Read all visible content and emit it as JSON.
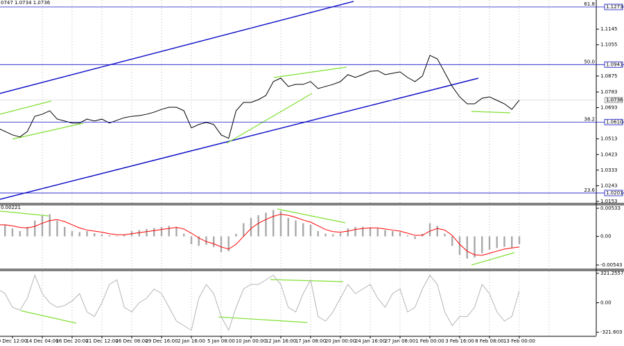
{
  "chart_data": [
    {
      "type": "line",
      "header": "0747 1.0734 1.0736",
      "color": "#000000",
      "categories": [
        null,
        null,
        "9 Dec 12:00",
        null,
        null,
        null,
        "14 Dec 04:00",
        null,
        null,
        null,
        "16 Dec 20:00",
        null,
        null,
        null,
        "21 Dec 12:00",
        null,
        null,
        null,
        "26 Dec 08:00",
        null,
        null,
        null,
        "29 Dec 16:00",
        null,
        null,
        null,
        "2 Jan 16:00",
        null,
        null,
        null,
        "5 Jan 08:00",
        null,
        null,
        null,
        "10 Jan 00:00",
        null,
        null,
        null,
        "12 Jan 16:00",
        null,
        null,
        null,
        "17 Jan 08:00",
        null,
        null,
        null,
        "20 Jan 00:00",
        null,
        null,
        null,
        "24 Jan 16:00",
        null,
        null,
        null,
        "27 Jan 08:00",
        null,
        null,
        null,
        "1 Feb 00:00",
        null,
        null,
        null,
        "3 Feb 16:00",
        null,
        null,
        null,
        "8 Feb 08:00",
        null,
        null,
        null,
        "13 Feb 00:00"
      ],
      "values": [
        1.0576,
        1.0556,
        1.0536,
        1.0524,
        1.0556,
        1.0643,
        1.0655,
        1.0675,
        1.0627,
        1.0616,
        1.0604,
        1.0604,
        1.0627,
        1.0616,
        1.0627,
        1.0604,
        1.062,
        1.0635,
        1.0643,
        1.0647,
        1.0655,
        1.0667,
        1.0683,
        1.0695,
        1.0695,
        1.0675,
        1.0576,
        1.0596,
        1.0608,
        1.0596,
        1.0536,
        1.0516,
        1.0675,
        1.0723,
        1.0723,
        1.0739,
        1.0763,
        1.0843,
        1.0863,
        1.0815,
        1.0827,
        1.0827,
        1.0843,
        1.0803,
        1.0815,
        1.0827,
        1.0843,
        1.0883,
        1.0867,
        1.0883,
        1.0902,
        1.0906,
        1.0883,
        1.0891,
        1.0899,
        1.0867,
        1.0843,
        1.0875,
        1.0994,
        1.0974,
        1.0895,
        1.0815,
        1.0755,
        1.0715,
        1.0715,
        1.0747,
        1.0755,
        1.0735,
        1.0715,
        1.0683,
        1.0736
      ],
      "ylim": [
        1.0145,
        1.1313
      ],
      "yticks": [
        1.1145,
        1.1055,
        1.0875,
        1.0783,
        1.0693,
        1.0513,
        1.0423,
        1.0333,
        1.0243,
        1.0153
      ],
      "levels": [
        {
          "value": 1.1273,
          "label": "61.8"
        },
        {
          "value": 1.0941,
          "label": "50.0"
        },
        {
          "value": 1.061,
          "label": "38.2"
        },
        {
          "value": 1.0201,
          "label": "23.6"
        }
      ],
      "level_prices": [
        {
          "value": 1.1273,
          "label": "1.1273"
        },
        {
          "value": 1.0941,
          "label": "1.0941"
        },
        {
          "value": 1.061,
          "label": "1.0610"
        },
        {
          "value": 1.0201,
          "label": "1.0201"
        }
      ],
      "last_price": 1.0736
    },
    {
      "type": "bar",
      "header": "0.00221",
      "series": [
        {
          "type": "bar",
          "color": "#a8a8a8",
          "values": [
            0.0026,
            0.0022,
            0.0015,
            0.001,
            0.0018,
            0.003,
            0.004,
            0.0042,
            0.003,
            0.0018,
            0.001,
            0.0008,
            0.001,
            0.0006,
            0.0004,
            0.0002,
            0.0001,
            0.0004,
            0.001,
            0.0012,
            0.0014,
            0.0016,
            0.0018,
            0.002,
            0.0018,
            0.0005,
            -0.0015,
            -0.0018,
            -0.0016,
            -0.002,
            -0.003,
            -0.0028,
            0.0005,
            0.0025,
            0.0035,
            0.004,
            0.0045,
            0.005,
            0.0048,
            0.0035,
            0.003,
            0.0025,
            0.0022,
            0.001,
            0.0005,
            0.0004,
            0.0006,
            0.0015,
            0.0018,
            0.0018,
            0.0017,
            0.0015,
            0.0012,
            0.001,
            0.0008,
            0.0002,
            -0.0005,
            0.0005,
            0.0025,
            0.002,
            0.0005,
            -0.0018,
            -0.0035,
            -0.0042,
            -0.004,
            -0.0032,
            -0.0025,
            -0.0022,
            -0.002,
            -0.0022,
            -0.0015
          ]
        },
        {
          "type": "line",
          "color": "#ff0000",
          "values": [
            0.0022,
            0.0022,
            0.002,
            0.0017,
            0.0016,
            0.0019,
            0.0025,
            0.003,
            0.0032,
            0.0028,
            0.0022,
            0.0016,
            0.0012,
            0.001,
            0.0008,
            0.0005,
            0.0003,
            0.0003,
            0.0005,
            0.0007,
            0.0009,
            0.0011,
            0.0013,
            0.0015,
            0.0017,
            0.0014,
            0.0006,
            -0.0003,
            -0.001,
            -0.0014,
            -0.002,
            -0.0024,
            -0.0015,
            0,
            0.0015,
            0.0025,
            0.0032,
            0.0038,
            0.0042,
            0.004,
            0.0036,
            0.0031,
            0.0027,
            0.002,
            0.0013,
            0.0009,
            0.0008,
            0.001,
            0.0013,
            0.0015,
            0.0016,
            0.0016,
            0.0014,
            0.0012,
            0.001,
            0.0006,
            0.0002,
            0.0002,
            0.001,
            0.0015,
            0.0012,
            0.0002,
            -0.0015,
            -0.0028,
            -0.0035,
            -0.0036,
            -0.0032,
            -0.0028,
            -0.0024,
            -0.0022,
            -0.002
          ]
        }
      ],
      "ylim": [
        -0.00609,
        0.00585
      ],
      "yticks": [
        0.00533,
        {
          "value": 0,
          "label": "0.00"
        },
        -0.00543
      ]
    },
    {
      "type": "line",
      "color": "#b4b4b4",
      "values": [
        150,
        100,
        -50,
        -80,
        50,
        300,
        100,
        0,
        -50,
        -30,
        20,
        100,
        -100,
        -150,
        0,
        200,
        250,
        -50,
        -100,
        0,
        50,
        150,
        100,
        -50,
        -200,
        -250,
        -300,
        50,
        200,
        100,
        -150,
        -300,
        -50,
        150,
        200,
        200,
        250,
        300,
        200,
        -50,
        -100,
        100,
        250,
        -150,
        -200,
        -100,
        50,
        200,
        100,
        150,
        200,
        50,
        -50,
        100,
        150,
        -100,
        -50,
        150,
        300,
        200,
        -100,
        -250,
        -150,
        -150,
        -50,
        200,
        100,
        -100,
        -200,
        -150,
        130
      ],
      "ylim": [
        -366,
        351
      ],
      "yticks": [
        321.2557,
        {
          "value": 0,
          "label": "0.00"
        },
        -321.603
      ]
    }
  ]
}
